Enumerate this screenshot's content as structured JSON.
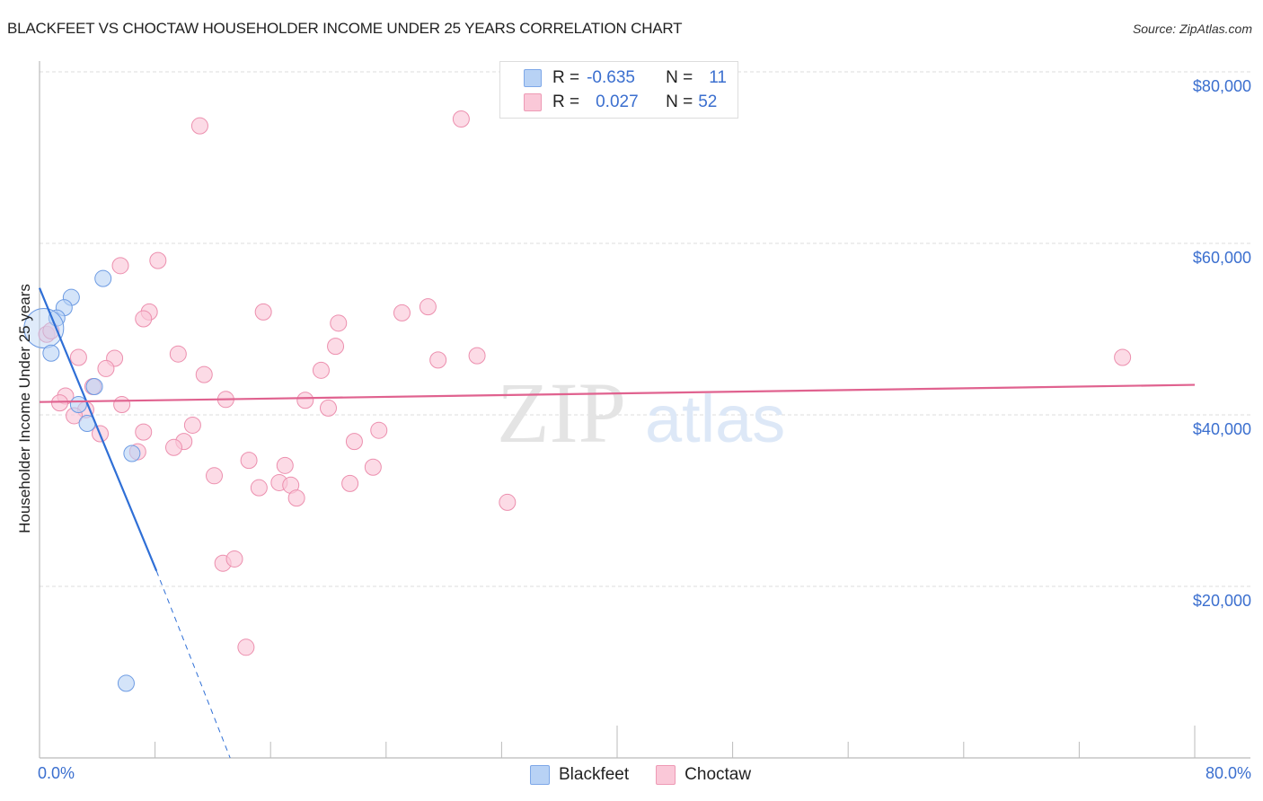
{
  "header": {
    "title": "BLACKFEET VS CHOCTAW HOUSEHOLDER INCOME UNDER 25 YEARS CORRELATION CHART",
    "source": "Source: ZipAtlas.com"
  },
  "legend": {
    "rows": [
      {
        "series": "Blackfeet",
        "r_label": "R =",
        "r_value": "-0.635",
        "n_label": "N =",
        "n_value": "11"
      },
      {
        "series": "Choctaw",
        "r_label": "R =",
        "r_value": "0.027",
        "n_label": "N =",
        "n_value": "52"
      }
    ],
    "bottom": [
      "Blackfeet",
      "Choctaw"
    ]
  },
  "axes": {
    "ylabel": "Householder Income Under 25 years",
    "yticks": [
      "$80,000",
      "$60,000",
      "$40,000",
      "$20,000"
    ],
    "xticks": [
      "0.0%",
      "80.0%"
    ]
  },
  "watermark": {
    "zip": "ZIP",
    "atlas": "atlas"
  },
  "colors": {
    "blackfeet_fill": "#b8d2f5",
    "blackfeet_stroke": "#6d9be3",
    "blackfeet_line": "#2f6fd6",
    "choctaw_fill": "#fac8d8",
    "choctaw_stroke": "#ec8fae",
    "choctaw_line": "#e0628f",
    "tick_label": "#3b6fcf"
  },
  "chart_data": {
    "type": "scatter",
    "title": "BLACKFEET VS CHOCTAW HOUSEHOLDER INCOME UNDER 25 YEARS CORRELATION CHART",
    "xlabel": "",
    "ylabel": "Householder Income Under 25 years",
    "xlim": [
      0,
      80
    ],
    "ylim": [
      0,
      82000
    ],
    "x_unit": "%",
    "y_ticks": [
      20000,
      40000,
      60000,
      80000
    ],
    "x_tick_labels": [
      "0.0%",
      "80.0%"
    ],
    "grid": true,
    "legend_position": "top-center and bottom",
    "series": [
      {
        "name": "Blackfeet",
        "r": -0.635,
        "n": 11,
        "points": [
          [
            4.4,
            55900
          ],
          [
            2.2,
            53700
          ],
          [
            1.7,
            52500
          ],
          [
            1.2,
            51300
          ],
          [
            0.3,
            50100
          ],
          [
            0.8,
            47200
          ],
          [
            3.8,
            43300
          ],
          [
            2.7,
            41200
          ],
          [
            3.3,
            39000
          ],
          [
            6.4,
            35500
          ],
          [
            6.0,
            8700
          ]
        ],
        "trendline": {
          "x0": 0,
          "y0": 54800,
          "x1": 8.1,
          "y1": 21800,
          "dashed_to": {
            "x": 13.2,
            "y": 0
          }
        }
      },
      {
        "name": "Choctaw",
        "r": 0.027,
        "n": 52,
        "points": [
          [
            11.1,
            73700
          ],
          [
            29.2,
            74500
          ],
          [
            5.6,
            57400
          ],
          [
            8.2,
            58000
          ],
          [
            7.6,
            52000
          ],
          [
            7.2,
            51200
          ],
          [
            15.5,
            52000
          ],
          [
            20.7,
            50700
          ],
          [
            25.1,
            51900
          ],
          [
            26.9,
            52600
          ],
          [
            20.5,
            48000
          ],
          [
            9.6,
            47100
          ],
          [
            27.6,
            46400
          ],
          [
            30.3,
            46900
          ],
          [
            75.0,
            46700
          ],
          [
            2.7,
            46700
          ],
          [
            5.2,
            46600
          ],
          [
            4.6,
            45400
          ],
          [
            11.4,
            44700
          ],
          [
            19.5,
            45200
          ],
          [
            3.7,
            43300
          ],
          [
            1.8,
            42200
          ],
          [
            12.9,
            41800
          ],
          [
            18.4,
            41700
          ],
          [
            5.7,
            41200
          ],
          [
            1.4,
            41400
          ],
          [
            3.2,
            40600
          ],
          [
            20.0,
            40800
          ],
          [
            2.4,
            39900
          ],
          [
            10.6,
            38800
          ],
          [
            4.2,
            37800
          ],
          [
            7.2,
            38000
          ],
          [
            23.5,
            38200
          ],
          [
            21.8,
            36900
          ],
          [
            10.0,
            36900
          ],
          [
            9.3,
            36200
          ],
          [
            6.8,
            35700
          ],
          [
            14.5,
            34700
          ],
          [
            17.0,
            34100
          ],
          [
            23.1,
            33900
          ],
          [
            12.1,
            32900
          ],
          [
            16.6,
            32100
          ],
          [
            21.5,
            32000
          ],
          [
            17.4,
            31800
          ],
          [
            15.2,
            31500
          ],
          [
            17.8,
            30300
          ],
          [
            32.4,
            29800
          ],
          [
            12.7,
            22700
          ],
          [
            13.5,
            23200
          ],
          [
            14.3,
            12900
          ],
          [
            0.5,
            49400
          ],
          [
            0.8,
            49800
          ]
        ],
        "trendline": {
          "x0": 0,
          "y0": 41500,
          "x1": 80,
          "y1": 43500
        }
      }
    ]
  }
}
